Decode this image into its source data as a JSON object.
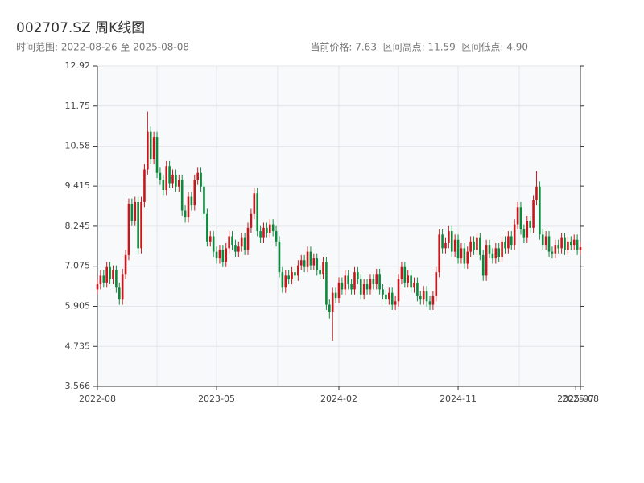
{
  "chart_data": {
    "type": "candlestick",
    "title": "002707.SZ 周K线图",
    "subtitle": "时间范围: 2022-08-26 至 2025-08-08",
    "info": "当前价格: 7.63  区间高点: 11.59  区间低点: 4.90",
    "up_color": "#c8161d",
    "down_color": "#0b8a3c",
    "ylim": [
      3.566,
      12.92
    ],
    "yticks": [
      3.566,
      4.735,
      5.905,
      7.075,
      8.245,
      9.415,
      10.58,
      11.75,
      12.92
    ],
    "xlim": [
      0,
      154
    ],
    "xticks": [
      {
        "value": 0,
        "label": "2022-08"
      },
      {
        "value": 38,
        "label": "2023-05"
      },
      {
        "value": 77,
        "label": "2024-02"
      },
      {
        "value": 115,
        "label": "2024-11"
      },
      {
        "value": 152.5,
        "label": "2025-07"
      },
      {
        "value": 154,
        "label": "2025-08"
      }
    ],
    "xgrid": [
      19,
      38,
      57.5,
      77,
      96,
      115,
      134.5,
      154
    ],
    "grid": true,
    "open": [
      6.4,
      6.55,
      6.8,
      6.6,
      7.05,
      6.7,
      6.95,
      6.45,
      6.1,
      6.85,
      7.4,
      8.9,
      8.4,
      8.95,
      7.6,
      8.95,
      9.9,
      11.0,
      10.2,
      10.85,
      9.8,
      9.6,
      9.3,
      10.0,
      9.5,
      9.75,
      9.4,
      9.6,
      8.7,
      8.5,
      9.1,
      8.85,
      9.6,
      9.8,
      9.4,
      8.6,
      7.8,
      7.95,
      7.5,
      7.3,
      7.55,
      7.2,
      7.6,
      7.95,
      7.7,
      7.5,
      7.65,
      7.9,
      7.55,
      8.2,
      8.6,
      9.2,
      8.1,
      7.9,
      8.2,
      8.05,
      8.3,
      8.1,
      7.8,
      6.9,
      6.45,
      6.8,
      6.7,
      6.9,
      6.8,
      7.1,
      7.25,
      7.05,
      7.5,
      7.1,
      7.3,
      6.95,
      6.85,
      7.2,
      5.95,
      5.75,
      6.3,
      6.15,
      6.6,
      6.4,
      6.8,
      6.55,
      6.4,
      6.9,
      6.7,
      6.25,
      6.55,
      6.4,
      6.7,
      6.55,
      6.85,
      6.4,
      6.25,
      6.1,
      6.3,
      5.95,
      6.05,
      6.7,
      7.05,
      6.6,
      6.8,
      6.45,
      6.6,
      6.2,
      6.1,
      6.35,
      6.05,
      5.95,
      6.2,
      6.9,
      8.0,
      7.6,
      7.75,
      8.1,
      7.5,
      7.85,
      7.3,
      7.6,
      7.15,
      7.5,
      7.8,
      7.55,
      7.9,
      7.4,
      6.8,
      7.7,
      7.45,
      7.3,
      7.6,
      7.35,
      7.8,
      7.6,
      7.95,
      7.7,
      8.3,
      8.8,
      8.15,
      7.9,
      8.4,
      8.2,
      9.0,
      9.4,
      8.0,
      7.7,
      7.95,
      7.5,
      7.45,
      7.7,
      7.6,
      7.9,
      7.55,
      7.8,
      7.7,
      7.85,
      7.55
    ],
    "close": [
      6.55,
      6.8,
      6.6,
      7.05,
      6.7,
      6.95,
      6.45,
      6.1,
      6.85,
      7.4,
      8.9,
      8.4,
      8.95,
      7.6,
      8.95,
      9.9,
      11.0,
      10.2,
      10.85,
      9.8,
      9.6,
      9.3,
      10.0,
      9.5,
      9.75,
      9.4,
      9.6,
      8.7,
      8.5,
      9.1,
      8.85,
      9.6,
      9.8,
      9.4,
      8.6,
      7.8,
      7.95,
      7.5,
      7.3,
      7.55,
      7.2,
      7.6,
      7.95,
      7.7,
      7.5,
      7.65,
      7.9,
      7.55,
      8.2,
      8.6,
      9.2,
      8.1,
      7.9,
      8.2,
      8.05,
      8.3,
      8.1,
      7.8,
      6.9,
      6.45,
      6.8,
      6.7,
      6.9,
      6.8,
      7.1,
      7.25,
      7.05,
      7.5,
      7.1,
      7.3,
      6.95,
      6.85,
      7.2,
      5.95,
      5.75,
      6.3,
      6.15,
      6.6,
      6.4,
      6.8,
      6.55,
      6.4,
      6.9,
      6.7,
      6.25,
      6.55,
      6.4,
      6.7,
      6.55,
      6.85,
      6.4,
      6.25,
      6.1,
      6.3,
      5.95,
      6.05,
      6.7,
      7.05,
      6.6,
      6.8,
      6.45,
      6.6,
      6.2,
      6.1,
      6.35,
      6.05,
      5.95,
      6.2,
      6.9,
      8.0,
      7.6,
      7.75,
      8.1,
      7.5,
      7.85,
      7.3,
      7.6,
      7.15,
      7.5,
      7.8,
      7.55,
      7.9,
      7.4,
      6.8,
      7.7,
      7.45,
      7.3,
      7.6,
      7.35,
      7.8,
      7.6,
      7.95,
      7.7,
      8.3,
      8.8,
      8.15,
      7.9,
      8.4,
      8.2,
      9.0,
      9.4,
      8.0,
      7.7,
      7.95,
      7.5,
      7.45,
      7.7,
      7.6,
      7.9,
      7.55,
      7.8,
      7.7,
      7.85,
      7.55,
      7.63
    ],
    "high": [
      6.7,
      6.95,
      6.95,
      7.2,
      7.2,
      7.1,
      7.1,
      6.6,
      7.0,
      7.55,
      9.05,
      9.05,
      9.1,
      9.1,
      9.1,
      10.05,
      11.59,
      11.15,
      11.0,
      11.0,
      9.95,
      9.75,
      10.15,
      10.15,
      9.9,
      9.9,
      9.75,
      9.75,
      8.85,
      9.25,
      9.25,
      9.75,
      9.95,
      9.95,
      9.55,
      8.75,
      8.1,
      8.1,
      7.65,
      7.7,
      7.7,
      7.75,
      8.1,
      8.1,
      7.85,
      7.8,
      8.05,
      8.05,
      8.35,
      8.75,
      9.35,
      9.35,
      8.25,
      8.35,
      8.35,
      8.45,
      8.45,
      8.25,
      7.95,
      7.05,
      6.95,
      6.95,
      7.05,
      7.05,
      7.25,
      7.4,
      7.4,
      7.65,
      7.65,
      7.45,
      7.45,
      7.1,
      7.35,
      7.35,
      6.1,
      6.45,
      6.45,
      6.75,
      6.75,
      6.95,
      6.95,
      6.7,
      7.05,
      7.05,
      6.85,
      6.7,
      6.7,
      6.85,
      6.85,
      7.0,
      7.0,
      6.55,
      6.4,
      6.45,
      6.45,
      6.2,
      6.85,
      7.2,
      7.2,
      6.95,
      6.95,
      6.75,
      6.75,
      6.35,
      6.5,
      6.5,
      6.2,
      6.35,
      7.05,
      8.15,
      8.15,
      7.9,
      8.25,
      8.25,
      8.0,
      8.0,
      7.75,
      7.75,
      7.65,
      7.95,
      7.95,
      8.05,
      8.05,
      7.55,
      7.85,
      7.85,
      7.6,
      7.75,
      7.75,
      7.95,
      7.95,
      8.1,
      8.1,
      8.45,
      8.95,
      8.95,
      8.3,
      8.55,
      8.55,
      9.15,
      9.85,
      9.55,
      8.15,
      8.1,
      8.1,
      7.65,
      7.85,
      7.85,
      8.05,
      8.05,
      7.95,
      7.95,
      8.0,
      8.0,
      7.78
    ],
    "low": [
      6.25,
      6.4,
      6.45,
      6.45,
      6.55,
      6.55,
      6.3,
      5.95,
      5.95,
      6.7,
      7.25,
      8.25,
      8.25,
      7.45,
      7.45,
      8.8,
      9.75,
      10.05,
      10.05,
      9.65,
      9.45,
      9.15,
      9.15,
      9.35,
      9.35,
      9.25,
      9.25,
      8.55,
      8.35,
      8.35,
      8.7,
      8.7,
      9.45,
      9.25,
      8.45,
      7.65,
      7.65,
      7.35,
      7.15,
      7.15,
      7.05,
      7.05,
      7.45,
      7.55,
      7.35,
      7.35,
      7.5,
      7.4,
      7.4,
      8.05,
      8.45,
      7.95,
      7.75,
      7.75,
      7.9,
      7.9,
      7.95,
      7.65,
      6.75,
      6.3,
      6.3,
      6.55,
      6.55,
      6.65,
      6.65,
      6.95,
      6.9,
      6.9,
      6.95,
      6.95,
      6.8,
      6.7,
      6.7,
      5.8,
      5.55,
      4.9,
      6.0,
      6.0,
      6.25,
      6.25,
      6.4,
      6.25,
      6.25,
      6.55,
      6.1,
      6.1,
      6.25,
      6.25,
      6.4,
      6.4,
      6.25,
      6.1,
      5.95,
      5.95,
      5.8,
      5.8,
      5.9,
      6.55,
      6.45,
      6.45,
      6.3,
      6.3,
      6.05,
      5.95,
      5.95,
      5.9,
      5.8,
      5.8,
      6.05,
      6.75,
      7.45,
      7.45,
      7.6,
      7.35,
      7.35,
      7.15,
      7.15,
      7.0,
      7.0,
      7.35,
      7.4,
      7.4,
      7.25,
      6.65,
      6.65,
      7.3,
      7.15,
      7.15,
      7.2,
      7.2,
      7.45,
      7.45,
      7.55,
      7.55,
      8.15,
      8.0,
      7.75,
      7.75,
      8.05,
      8.05,
      8.85,
      7.85,
      7.55,
      7.55,
      7.35,
      7.3,
      7.3,
      7.45,
      7.45,
      7.4,
      7.4,
      7.55,
      7.55,
      7.4,
      7.4
    ]
  }
}
